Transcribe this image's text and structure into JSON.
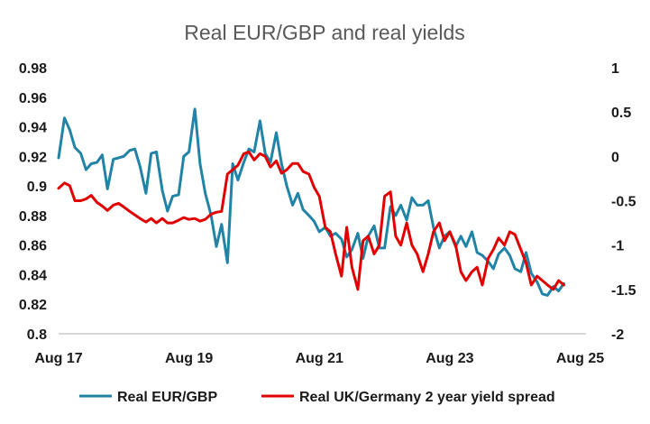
{
  "chart_data": {
    "type": "line",
    "title": "Real EUR/GBP and real yields",
    "xlabel": "",
    "ylabel": "",
    "x_ticks": [
      "Aug 17",
      "Aug 19",
      "Aug 21",
      "Aug 23",
      "Aug 25"
    ],
    "x_range": [
      2017.58,
      2025.67
    ],
    "left_axis": {
      "ylim": [
        0.8,
        0.98
      ],
      "ticks": [
        "0.98",
        "0.96",
        "0.94",
        "0.92",
        "0.9",
        "0.88",
        "0.86",
        "0.84",
        "0.82",
        "0.8"
      ]
    },
    "right_axis": {
      "ylim": [
        -2,
        1
      ],
      "ticks": [
        "1",
        "0.5",
        "0",
        "-0.5",
        "-1",
        "-1.5",
        "-2"
      ]
    },
    "grid": false,
    "legend_position": "bottom",
    "series": [
      {
        "name": "Real EUR/GBP",
        "color": "#2183a6",
        "axis": "left",
        "x": [
          2017.58,
          2017.67,
          2017.75,
          2017.83,
          2017.92,
          2018.0,
          2018.08,
          2018.17,
          2018.25,
          2018.33,
          2018.42,
          2018.5,
          2018.58,
          2018.67,
          2018.75,
          2018.83,
          2018.92,
          2019.0,
          2019.08,
          2019.17,
          2019.25,
          2019.33,
          2019.42,
          2019.5,
          2019.58,
          2019.67,
          2019.75,
          2019.83,
          2019.92,
          2020.0,
          2020.08,
          2020.17,
          2020.25,
          2020.33,
          2020.42,
          2020.5,
          2020.58,
          2020.67,
          2020.75,
          2020.83,
          2020.92,
          2021.0,
          2021.08,
          2021.17,
          2021.25,
          2021.33,
          2021.42,
          2021.5,
          2021.58,
          2021.67,
          2021.75,
          2021.83,
          2021.92,
          2022.0,
          2022.08,
          2022.17,
          2022.25,
          2022.33,
          2022.42,
          2022.5,
          2022.58,
          2022.67,
          2022.75,
          2022.83,
          2022.92,
          2023.0,
          2023.08,
          2023.17,
          2023.25,
          2023.33,
          2023.42,
          2023.5,
          2023.58,
          2023.67,
          2023.75,
          2023.83,
          2023.92,
          2024.0,
          2024.08,
          2024.17,
          2024.25,
          2024.33,
          2024.42,
          2024.5,
          2024.58,
          2024.67,
          2024.75,
          2024.83,
          2024.92,
          2025.0,
          2025.08,
          2025.17,
          2025.25,
          2025.33
        ],
        "values": [
          0.919,
          0.946,
          0.938,
          0.926,
          0.922,
          0.911,
          0.915,
          0.916,
          0.921,
          0.898,
          0.918,
          0.919,
          0.92,
          0.924,
          0.925,
          0.913,
          0.895,
          0.922,
          0.923,
          0.897,
          0.883,
          0.893,
          0.894,
          0.92,
          0.923,
          0.952,
          0.915,
          0.895,
          0.88,
          0.859,
          0.874,
          0.848,
          0.915,
          0.904,
          0.916,
          0.925,
          0.923,
          0.944,
          0.922,
          0.916,
          0.936,
          0.915,
          0.9,
          0.887,
          0.895,
          0.884,
          0.88,
          0.876,
          0.869,
          0.872,
          0.866,
          0.868,
          0.864,
          0.852,
          0.857,
          0.868,
          0.851,
          0.866,
          0.873,
          0.858,
          0.858,
          0.886,
          0.88,
          0.887,
          0.877,
          0.892,
          0.887,
          0.887,
          0.89,
          0.872,
          0.858,
          0.866,
          0.869,
          0.859,
          0.866,
          0.859,
          0.869,
          0.855,
          0.853,
          0.849,
          0.844,
          0.854,
          0.858,
          0.853,
          0.844,
          0.842,
          0.855,
          0.841,
          0.835,
          0.827,
          0.826,
          0.832,
          0.829,
          0.834
        ]
      },
      {
        "name": "Real UK/Germany 2 year yield spread",
        "color": "#e00000",
        "axis": "right",
        "x": [
          2017.58,
          2017.67,
          2017.75,
          2017.83,
          2017.92,
          2018.0,
          2018.08,
          2018.17,
          2018.25,
          2018.33,
          2018.42,
          2018.5,
          2018.58,
          2018.67,
          2018.75,
          2018.83,
          2018.92,
          2019.0,
          2019.08,
          2019.17,
          2019.25,
          2019.33,
          2019.42,
          2019.5,
          2019.58,
          2019.67,
          2019.75,
          2019.83,
          2019.92,
          2020.0,
          2020.08,
          2020.17,
          2020.25,
          2020.33,
          2020.42,
          2020.5,
          2020.58,
          2020.67,
          2020.75,
          2020.83,
          2020.92,
          2021.0,
          2021.08,
          2021.17,
          2021.25,
          2021.33,
          2021.42,
          2021.5,
          2021.58,
          2021.67,
          2021.75,
          2021.83,
          2021.92,
          2022.0,
          2022.08,
          2022.17,
          2022.25,
          2022.33,
          2022.42,
          2022.5,
          2022.58,
          2022.67,
          2022.75,
          2022.83,
          2022.92,
          2023.0,
          2023.08,
          2023.17,
          2023.25,
          2023.33,
          2023.42,
          2023.5,
          2023.58,
          2023.67,
          2023.75,
          2023.83,
          2023.92,
          2024.0,
          2024.08,
          2024.17,
          2024.25,
          2024.33,
          2024.42,
          2024.5,
          2024.58,
          2024.67,
          2024.75,
          2024.83,
          2024.92,
          2025.0,
          2025.08,
          2025.17,
          2025.25,
          2025.33
        ],
        "values": [
          -0.36,
          -0.3,
          -0.33,
          -0.5,
          -0.5,
          -0.48,
          -0.44,
          -0.52,
          -0.56,
          -0.61,
          -0.55,
          -0.53,
          -0.57,
          -0.62,
          -0.66,
          -0.7,
          -0.74,
          -0.7,
          -0.75,
          -0.7,
          -0.75,
          -0.75,
          -0.72,
          -0.69,
          -0.71,
          -0.7,
          -0.73,
          -0.71,
          -0.65,
          -0.63,
          -0.62,
          -0.2,
          -0.15,
          -0.1,
          0.03,
          0.05,
          -0.04,
          0.03,
          0.0,
          -0.12,
          -0.05,
          -0.19,
          -0.15,
          -0.08,
          -0.08,
          -0.17,
          -0.2,
          -0.35,
          -0.45,
          -0.8,
          -0.85,
          -1.1,
          -1.35,
          -0.8,
          -1.25,
          -1.5,
          -0.95,
          -0.9,
          -1.1,
          -1.0,
          -0.45,
          -0.4,
          -0.9,
          -1.0,
          -0.75,
          -1.0,
          -1.1,
          -1.3,
          -1.1,
          -0.85,
          -0.75,
          -0.95,
          -0.85,
          -1.0,
          -1.3,
          -1.4,
          -1.3,
          -1.25,
          -1.45,
          -1.15,
          -1.05,
          -0.92,
          -1.0,
          -0.85,
          -0.88,
          -1.05,
          -1.2,
          -1.45,
          -1.35,
          -1.4,
          -1.45,
          -1.5,
          -1.4,
          -1.45
        ]
      }
    ]
  }
}
